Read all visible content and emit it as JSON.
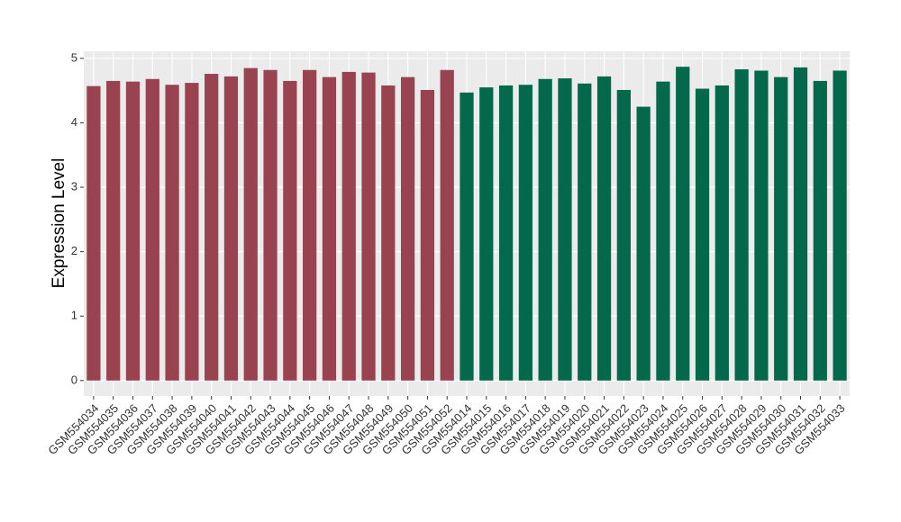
{
  "chart_data": {
    "type": "bar",
    "y_label": "Expression Level",
    "categories": [
      "GSM554034",
      "GSM554035",
      "GSM554036",
      "GSM554037",
      "GSM554038",
      "GSM554039",
      "GSM554040",
      "GSM554041",
      "GSM554042",
      "GSM554043",
      "GSM554044",
      "GSM554045",
      "GSM554046",
      "GSM554047",
      "GSM554048",
      "GSM554049",
      "GSM554050",
      "GSM554051",
      "GSM554052",
      "GSM554014",
      "GSM554015",
      "GSM554016",
      "GSM554017",
      "GSM554018",
      "GSM554019",
      "GSM554020",
      "GSM554021",
      "GSM554022",
      "GSM554023",
      "GSM554024",
      "GSM554025",
      "GSM554026",
      "GSM554027",
      "GSM554028",
      "GSM554029",
      "GSM554030",
      "GSM554031",
      "GSM554032",
      "GSM554033"
    ],
    "values": [
      4.57,
      4.65,
      4.64,
      4.68,
      4.59,
      4.62,
      4.76,
      4.72,
      4.85,
      4.82,
      4.65,
      4.82,
      4.71,
      4.79,
      4.78,
      4.58,
      4.71,
      4.51,
      4.82,
      4.47,
      4.55,
      4.58,
      4.59,
      4.68,
      4.69,
      4.61,
      4.72,
      4.51,
      4.25,
      4.64,
      4.87,
      4.53,
      4.58,
      4.83,
      4.81,
      4.71,
      4.86,
      4.65,
      4.81
    ],
    "colors": [
      "#9a4350",
      "#9a4350",
      "#9a4350",
      "#9a4350",
      "#9a4350",
      "#9a4350",
      "#9a4350",
      "#9a4350",
      "#9a4350",
      "#9a4350",
      "#9a4350",
      "#9a4350",
      "#9a4350",
      "#9a4350",
      "#9a4350",
      "#9a4350",
      "#9a4350",
      "#9a4350",
      "#9a4350",
      "#04694a",
      "#04694a",
      "#04694a",
      "#04694a",
      "#04694a",
      "#04694a",
      "#04694a",
      "#04694a",
      "#04694a",
      "#04694a",
      "#04694a",
      "#04694a",
      "#04694a",
      "#04694a",
      "#04694a",
      "#04694a",
      "#04694a",
      "#04694a",
      "#04694a",
      "#04694a"
    ],
    "ylim": [
      -0.24,
      5.11
    ],
    "yticks": [
      0,
      1,
      2,
      3,
      4,
      5
    ],
    "grid": true
  }
}
